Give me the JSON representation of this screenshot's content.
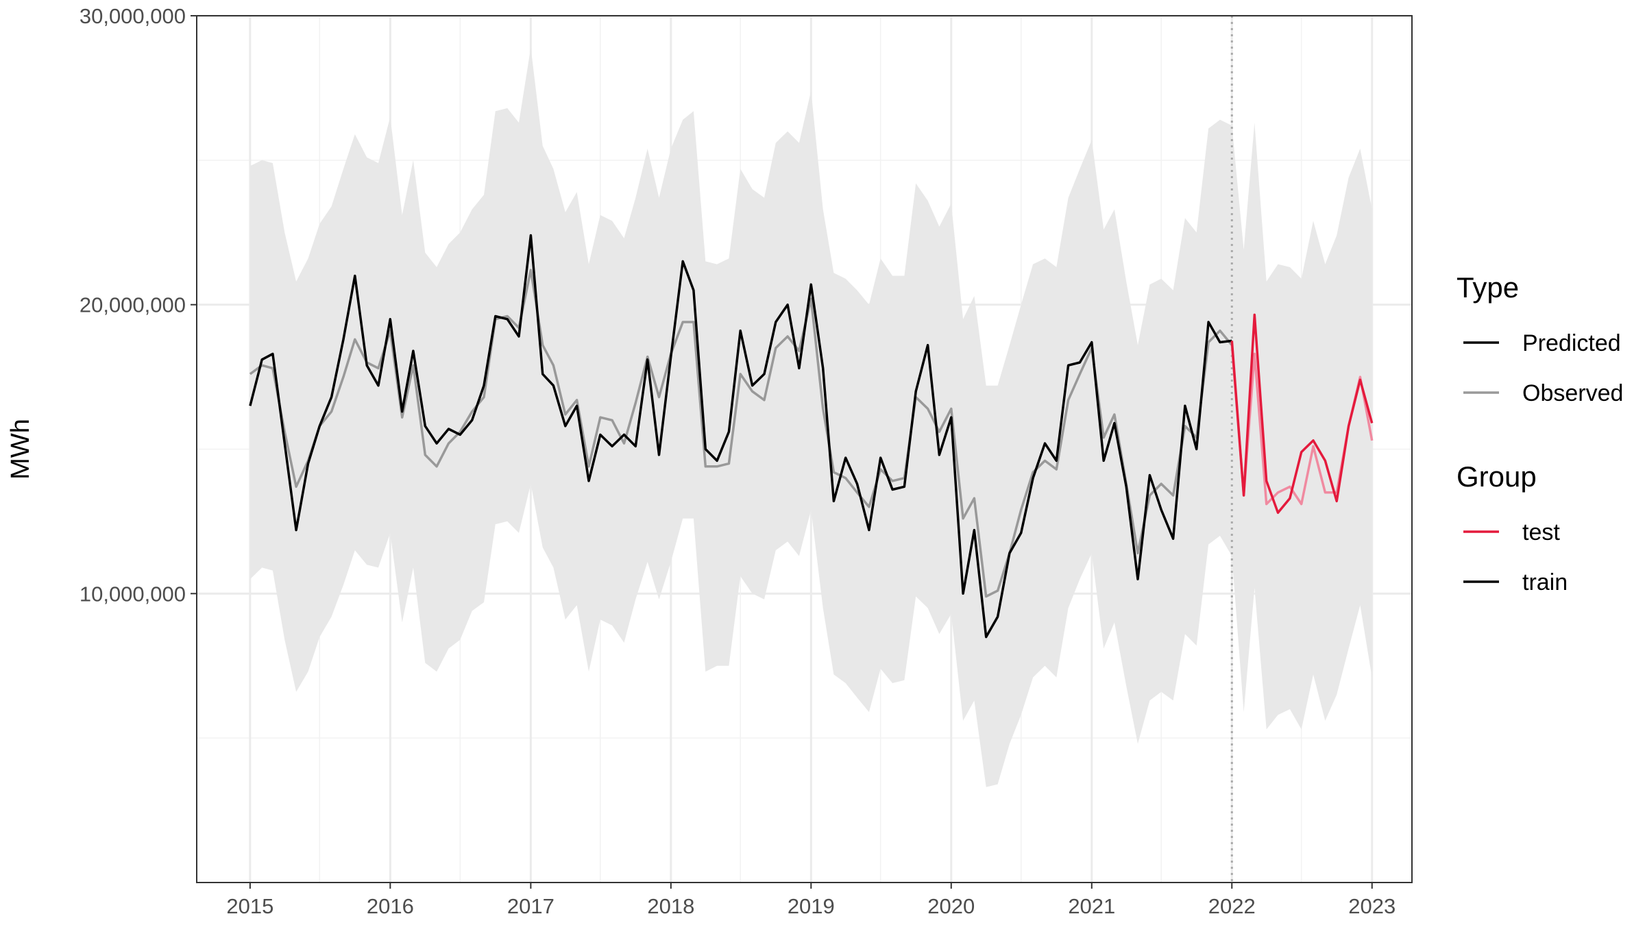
{
  "chart_data": {
    "type": "line",
    "title": "",
    "xlabel": "",
    "ylabel": "MWh",
    "xlim": [
      "2014-08-15",
      "2023-04-15"
    ],
    "ylim": [
      0,
      30000000
    ],
    "x_ticks": [
      "2015",
      "2016",
      "2017",
      "2018",
      "2019",
      "2020",
      "2021",
      "2022",
      "2023"
    ],
    "y_ticks": [
      "10,000,000",
      "20,000,000",
      "30,000,000"
    ],
    "y_tick_values": [
      10000000,
      20000000,
      30000000
    ],
    "grid": true,
    "split_date": "2022-01-01",
    "legend": {
      "position": "right",
      "groups": [
        {
          "title": "Type",
          "items": [
            {
              "label": "Predicted",
              "color": "#000000"
            },
            {
              "label": "Observed",
              "color": "#999999"
            }
          ]
        },
        {
          "title": "Group",
          "items": [
            {
              "label": "test",
              "color": "#e41a3c"
            },
            {
              "label": "train",
              "color": "#000000"
            }
          ]
        }
      ]
    },
    "colors": {
      "train": "#000000",
      "observed": "#999999",
      "test": "#e41a3c",
      "test_observed": "#f08aa0",
      "band": "#e8e8e8",
      "split_line": "#aaaaaa"
    },
    "start_date": "2015-01",
    "predicted": [
      16500000,
      18100000,
      18300000,
      15200000,
      12200000,
      14500000,
      15800000,
      16800000,
      18800000,
      21000000,
      17900000,
      17200000,
      19500000,
      16300000,
      18400000,
      15800000,
      15200000,
      15700000,
      15500000,
      16000000,
      17200000,
      19600000,
      19500000,
      18900000,
      22400000,
      17600000,
      17200000,
      15800000,
      16500000,
      13900000,
      15500000,
      15100000,
      15500000,
      15100000,
      18100000,
      14800000,
      18200000,
      21500000,
      20500000,
      15000000,
      14600000,
      15600000,
      19100000,
      17200000,
      17600000,
      19400000,
      20000000,
      17800000,
      20700000,
      17800000,
      13200000,
      14700000,
      13800000,
      12200000,
      14700000,
      13600000,
      13700000,
      17000000,
      18600000,
      14800000,
      16100000,
      10000000,
      12200000,
      8500000,
      9200000,
      11400000,
      12100000,
      14000000,
      15200000,
      14600000,
      17900000,
      18000000,
      18700000,
      14600000,
      15900000,
      13700000,
      10500000,
      14100000,
      12900000,
      11900000,
      16500000,
      15000000,
      19400000,
      18700000,
      18750000,
      13400000,
      19650000,
      13900000,
      12800000,
      13300000,
      14900000,
      15300000,
      14600000,
      13200000,
      15800000,
      17400000,
      15900000
    ],
    "observed": [
      17600000,
      17900000,
      17800000,
      15600000,
      13700000,
      14600000,
      15800000,
      16300000,
      17500000,
      18800000,
      18000000,
      17800000,
      19100000,
      16100000,
      17900000,
      14800000,
      14400000,
      15200000,
      15600000,
      16300000,
      16800000,
      19500000,
      19600000,
      19200000,
      21200000,
      18600000,
      17900000,
      16200000,
      16700000,
      14400000,
      16100000,
      16000000,
      15200000,
      16600000,
      18200000,
      16800000,
      18300000,
      19400000,
      19400000,
      14400000,
      14400000,
      14500000,
      17600000,
      17000000,
      16700000,
      18500000,
      18900000,
      18400000,
      20200000,
      16400000,
      14200000,
      14000000,
      13500000,
      13000000,
      14300000,
      13900000,
      14000000,
      16800000,
      16400000,
      15600000,
      16400000,
      12600000,
      13300000,
      9900000,
      10100000,
      11400000,
      12900000,
      14200000,
      14600000,
      14300000,
      16700000,
      17600000,
      18500000,
      15400000,
      16200000,
      13800000,
      11400000,
      13400000,
      13800000,
      13400000,
      15800000,
      15400000,
      18700000,
      19100000,
      18600000,
      13400000,
      18300000,
      13100000,
      13500000,
      13700000,
      13100000,
      15100000,
      13500000,
      13500000,
      15800000,
      17500000,
      15300000
    ],
    "band_upper": [
      24800000,
      25000000,
      24900000,
      22500000,
      20800000,
      21600000,
      22800000,
      23400000,
      24700000,
      25900000,
      25100000,
      24900000,
      26500000,
      23100000,
      25000000,
      21800000,
      21300000,
      22100000,
      22500000,
      23300000,
      23800000,
      26700000,
      26800000,
      26300000,
      28900000,
      25500000,
      24700000,
      23200000,
      23900000,
      21400000,
      23100000,
      22900000,
      22300000,
      23700000,
      25400000,
      23700000,
      25400000,
      26400000,
      26700000,
      21500000,
      21400000,
      21600000,
      24700000,
      24000000,
      23700000,
      25600000,
      26000000,
      25600000,
      27400000,
      23300000,
      21100000,
      20900000,
      20500000,
      20000000,
      21600000,
      21000000,
      21000000,
      24200000,
      23600000,
      22700000,
      23500000,
      19500000,
      20300000,
      17200000,
      17200000,
      18600000,
      20000000,
      21400000,
      21600000,
      21300000,
      23700000,
      24700000,
      25700000,
      22600000,
      23300000,
      20800000,
      18600000,
      20700000,
      20900000,
      20500000,
      23000000,
      22500000,
      26100000,
      26400000,
      26200000,
      21900000,
      26300000,
      20800000,
      21400000,
      21300000,
      20900000,
      22900000,
      21400000,
      22400000,
      24400000,
      25400000,
      23300000
    ],
    "band_lower": [
      10500000,
      10900000,
      10800000,
      8400000,
      6600000,
      7300000,
      8500000,
      9200000,
      10300000,
      11500000,
      11000000,
      10900000,
      12100000,
      9000000,
      10900000,
      7600000,
      7300000,
      8100000,
      8400000,
      9400000,
      9700000,
      12400000,
      12500000,
      12100000,
      13800000,
      11600000,
      10900000,
      9100000,
      9600000,
      7300000,
      9100000,
      8900000,
      8300000,
      9800000,
      11100000,
      9800000,
      11100000,
      12600000,
      12600000,
      7300000,
      7500000,
      7500000,
      10600000,
      10000000,
      9800000,
      11500000,
      11800000,
      11300000,
      12900000,
      9500000,
      7200000,
      6900000,
      6400000,
      5900000,
      7400000,
      6900000,
      7000000,
      9900000,
      9500000,
      8600000,
      9300000,
      5600000,
      6300000,
      3300000,
      3400000,
      4800000,
      5800000,
      7100000,
      7500000,
      7100000,
      9500000,
      10500000,
      11400000,
      8100000,
      9000000,
      6800000,
      4800000,
      6300000,
      6600000,
      6300000,
      8600000,
      8200000,
      11700000,
      12000000,
      11300000,
      5900000,
      10200000,
      5300000,
      5800000,
      6000000,
      5300000,
      7200000,
      5600000,
      6500000,
      8100000,
      9600000,
      7100000
    ]
  }
}
